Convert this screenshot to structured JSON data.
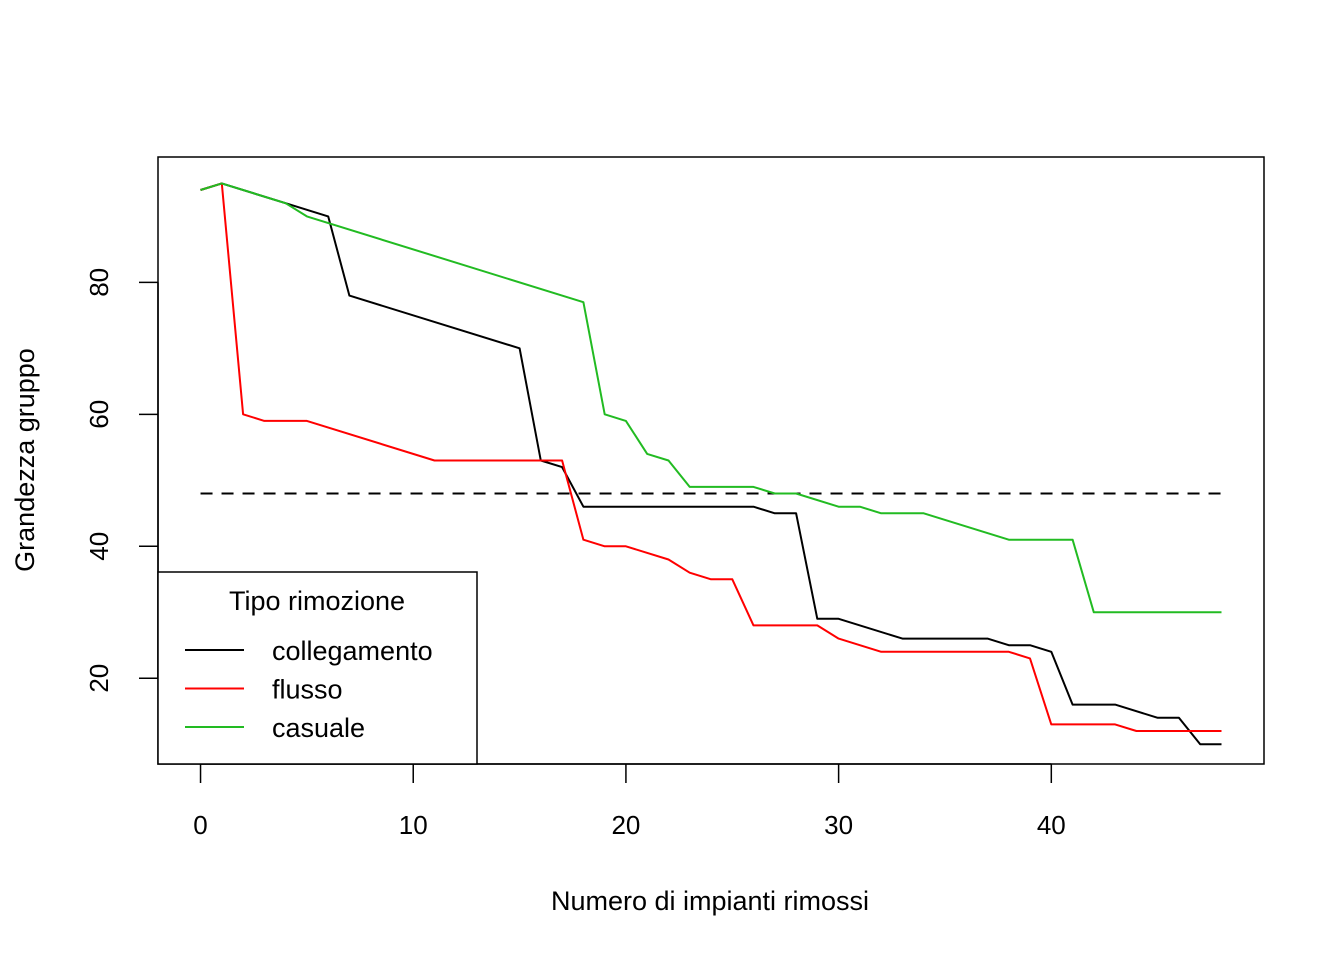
{
  "chart_data": {
    "type": "line",
    "title": "",
    "xlabel": "Numero di impianti rimossi",
    "ylabel": "Grandezza gruppo",
    "xlim": [
      -2,
      50
    ],
    "ylim": [
      7,
      99
    ],
    "x_ticks": [
      0,
      10,
      20,
      30,
      40
    ],
    "y_ticks": [
      20,
      40,
      60,
      80
    ],
    "grid": false,
    "legend": {
      "title": "Tipo rimozione",
      "position": "bottom-left",
      "entries": [
        "collegamento",
        "flusso",
        "casuale"
      ]
    },
    "reference_line": {
      "y": 48,
      "x_from": 0,
      "x_to": 48,
      "style": "dashed",
      "color": "#000000"
    },
    "series": [
      {
        "name": "collegamento",
        "color": "#000000",
        "points": [
          [
            0,
            94
          ],
          [
            1,
            95
          ],
          [
            4,
            92
          ],
          [
            6,
            90
          ],
          [
            7,
            78
          ],
          [
            15,
            70
          ],
          [
            16,
            53
          ],
          [
            17,
            52
          ],
          [
            18,
            46
          ],
          [
            26,
            46
          ],
          [
            27,
            45
          ],
          [
            28,
            45
          ],
          [
            29,
            29
          ],
          [
            30,
            29
          ],
          [
            33,
            26
          ],
          [
            37,
            26
          ],
          [
            38,
            25
          ],
          [
            39,
            25
          ],
          [
            40,
            24
          ],
          [
            41,
            16
          ],
          [
            43,
            16
          ],
          [
            45,
            14
          ],
          [
            46,
            14
          ],
          [
            47,
            10
          ],
          [
            48,
            10
          ]
        ]
      },
      {
        "name": "flusso",
        "color": "#ff0000",
        "points": [
          [
            0,
            94
          ],
          [
            1,
            95
          ],
          [
            2,
            60
          ],
          [
            3,
            59
          ],
          [
            5,
            59
          ],
          [
            11,
            53
          ],
          [
            17,
            53
          ],
          [
            18,
            41
          ],
          [
            19,
            40
          ],
          [
            20,
            40
          ],
          [
            22,
            38
          ],
          [
            23,
            36
          ],
          [
            24,
            35
          ],
          [
            25,
            35
          ],
          [
            26,
            28
          ],
          [
            29,
            28
          ],
          [
            30,
            26
          ],
          [
            32,
            24
          ],
          [
            38,
            24
          ],
          [
            39,
            23
          ],
          [
            40,
            13
          ],
          [
            43,
            13
          ],
          [
            44,
            12
          ],
          [
            48,
            12
          ]
        ]
      },
      {
        "name": "casuale",
        "color": "#22bb22",
        "points": [
          [
            0,
            94
          ],
          [
            1,
            95
          ],
          [
            4,
            92
          ],
          [
            5,
            90
          ],
          [
            18,
            77
          ],
          [
            19,
            60
          ],
          [
            20,
            59
          ],
          [
            21,
            54
          ],
          [
            22,
            53
          ],
          [
            23,
            49
          ],
          [
            26,
            49
          ],
          [
            27,
            48
          ],
          [
            28,
            48
          ],
          [
            30,
            46
          ],
          [
            31,
            46
          ],
          [
            32,
            45
          ],
          [
            34,
            45
          ],
          [
            38,
            41
          ],
          [
            41,
            41
          ],
          [
            42,
            30
          ],
          [
            48,
            30
          ]
        ]
      }
    ]
  }
}
